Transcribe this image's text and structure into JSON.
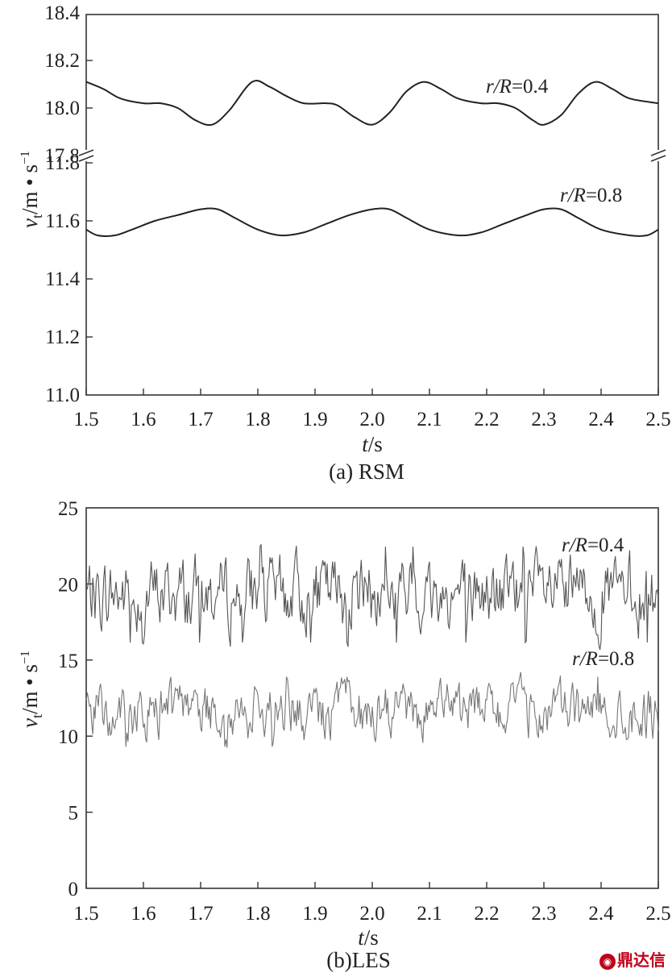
{
  "chart_data": [
    {
      "type": "line",
      "caption": "(a) RSM",
      "xlabel": "t/s",
      "ylabel": "v_t/m • s^-1",
      "xlim": [
        1.5,
        2.5
      ],
      "xticks": [
        "1.5",
        "1.6",
        "1.7",
        "1.8",
        "1.9",
        "2.0",
        "2.1",
        "2.2",
        "2.3",
        "2.4",
        "2.5"
      ],
      "y_broken": true,
      "upper_ylim": [
        17.8,
        18.4
      ],
      "upper_yticks": [
        "17.8",
        "18.0",
        "18.2",
        "18.4"
      ],
      "lower_ylim": [
        11.0,
        11.8
      ],
      "lower_yticks": [
        "11.0",
        "11.2",
        "11.4",
        "11.6",
        "11.8"
      ],
      "grid": false,
      "series": [
        {
          "name": "r/R=0.4",
          "label_var": "r/R",
          "label_value": "=0.4",
          "x": [
            1.5,
            1.53,
            1.56,
            1.6,
            1.63,
            1.66,
            1.69,
            1.72,
            1.75,
            1.79,
            1.82,
            1.85,
            1.88,
            1.92,
            1.94,
            1.97,
            2.0,
            2.03,
            2.06,
            2.09,
            2.12,
            2.15,
            2.19,
            2.22,
            2.25,
            2.28,
            2.3,
            2.33,
            2.36,
            2.39,
            2.42,
            2.45,
            2.5
          ],
          "y": [
            18.11,
            18.08,
            18.04,
            18.02,
            18.02,
            18.0,
            17.95,
            17.93,
            17.99,
            18.11,
            18.09,
            18.05,
            18.02,
            18.02,
            18.01,
            17.96,
            17.93,
            17.98,
            18.07,
            18.11,
            18.08,
            18.04,
            18.02,
            18.02,
            18.0,
            17.95,
            17.93,
            17.97,
            18.06,
            18.11,
            18.08,
            18.04,
            18.02
          ],
          "color": "#222222"
        },
        {
          "name": "r/R=0.8",
          "label_var": "r/R",
          "label_value": "=0.8",
          "x": [
            1.5,
            1.52,
            1.55,
            1.58,
            1.62,
            1.66,
            1.7,
            1.73,
            1.76,
            1.8,
            1.84,
            1.88,
            1.92,
            1.96,
            2.0,
            2.03,
            2.06,
            2.1,
            2.15,
            2.19,
            2.23,
            2.27,
            2.3,
            2.33,
            2.36,
            2.4,
            2.45,
            2.48,
            2.5
          ],
          "y": [
            11.57,
            11.55,
            11.55,
            11.57,
            11.6,
            11.62,
            11.64,
            11.64,
            11.61,
            11.57,
            11.55,
            11.56,
            11.59,
            11.62,
            11.64,
            11.64,
            11.61,
            11.57,
            11.55,
            11.56,
            11.59,
            11.62,
            11.64,
            11.64,
            11.61,
            11.57,
            11.55,
            11.55,
            11.57
          ],
          "color": "#222222"
        }
      ]
    },
    {
      "type": "line",
      "caption": "(b)LES",
      "xlabel": "t/s",
      "ylabel": "v_t/m • s^-1",
      "xlim": [
        1.5,
        2.5
      ],
      "xticks": [
        "1.5",
        "1.6",
        "1.7",
        "1.8",
        "1.9",
        "2.0",
        "2.1",
        "2.2",
        "2.3",
        "2.4",
        "2.5"
      ],
      "ylim": [
        0,
        25
      ],
      "yticks": [
        "0",
        "5",
        "10",
        "15",
        "20",
        "25"
      ],
      "grid": false,
      "series": [
        {
          "name": "r/R=0.4",
          "label_var": "r/R",
          "label_value": "=0.4",
          "mean": 19.3,
          "fluctuation_min": 15.6,
          "fluctuation_max": 22.6,
          "color": "#555555"
        },
        {
          "name": "r/R=0.8",
          "label_var": "r/R",
          "label_value": "=0.8",
          "mean": 11.6,
          "fluctuation_min": 9.2,
          "fluctuation_max": 14.3,
          "color": "#777777"
        }
      ]
    }
  ],
  "watermark": {
    "icon": "logo-icon",
    "text": "鼎达信"
  }
}
